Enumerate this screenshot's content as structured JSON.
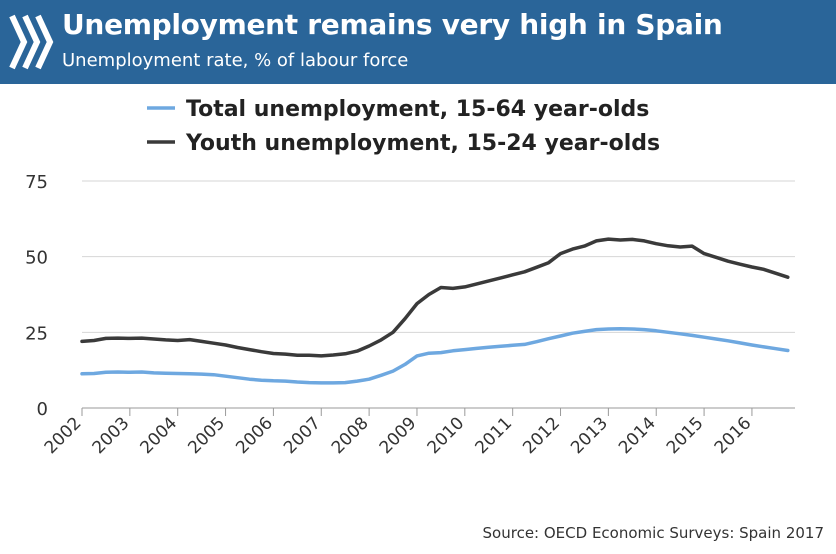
{
  "header": {
    "title": "Unemployment remains very high in Spain",
    "subtitle": "Unemployment rate, % of labour force",
    "logo_icon": "oecd-chevrons-icon",
    "background_color": "#2a6599"
  },
  "source": "Source: OECD Economic Surveys: Spain 2017",
  "chart_data": {
    "type": "line",
    "title": "Unemployment remains very high in Spain",
    "subtitle": "Unemployment rate, % of labour force",
    "xlabel": "",
    "ylabel": "",
    "ylim": [
      0,
      75
    ],
    "yticks": [
      0,
      25,
      50,
      75
    ],
    "xlim": [
      2002,
      2016.9
    ],
    "xticks": [
      "2002",
      "2003",
      "2004",
      "2005",
      "2006",
      "2007",
      "2008",
      "2009",
      "2010",
      "2011",
      "2012",
      "2013",
      "2014",
      "2015",
      "2016"
    ],
    "grid": true,
    "legend_position": "top",
    "series": [
      {
        "name": "Total unemployment, 15-64 year-olds",
        "color": "#6ea8e0",
        "x": [
          2002.0,
          2002.25,
          2002.5,
          2002.75,
          2003.0,
          2003.25,
          2003.5,
          2003.75,
          2004.0,
          2004.25,
          2004.5,
          2004.75,
          2005.0,
          2005.25,
          2005.5,
          2005.75,
          2006.0,
          2006.25,
          2006.5,
          2006.75,
          2007.0,
          2007.25,
          2007.5,
          2007.75,
          2008.0,
          2008.25,
          2008.5,
          2008.75,
          2009.0,
          2009.25,
          2009.5,
          2009.75,
          2010.0,
          2010.25,
          2010.5,
          2010.75,
          2011.0,
          2011.25,
          2011.5,
          2011.75,
          2012.0,
          2012.25,
          2012.5,
          2012.75,
          2013.0,
          2013.25,
          2013.5,
          2013.75,
          2014.0,
          2014.25,
          2014.5,
          2014.75,
          2015.0,
          2015.25,
          2015.5,
          2015.75,
          2016.0,
          2016.25,
          2016.5,
          2016.75
        ],
        "values": [
          11.3,
          11.4,
          11.8,
          11.9,
          11.8,
          11.9,
          11.6,
          11.5,
          11.4,
          11.3,
          11.2,
          11.0,
          10.5,
          10.0,
          9.5,
          9.2,
          9.0,
          8.9,
          8.6,
          8.4,
          8.3,
          8.3,
          8.4,
          8.9,
          9.5,
          10.8,
          12.2,
          14.4,
          17.2,
          18.1,
          18.3,
          18.9,
          19.3,
          19.7,
          20.1,
          20.4,
          20.7,
          21.0,
          21.9,
          22.9,
          23.8,
          24.7,
          25.3,
          25.9,
          26.1,
          26.2,
          26.1,
          25.9,
          25.5,
          25.0,
          24.5,
          24.0,
          23.4,
          22.8,
          22.2,
          21.5,
          20.8,
          20.2,
          19.6,
          19.0
        ]
      },
      {
        "name": "Youth unemployment, 15-24 year-olds",
        "color": "#3a3a3a",
        "x": [
          2002.0,
          2002.25,
          2002.5,
          2002.75,
          2003.0,
          2003.25,
          2003.5,
          2003.75,
          2004.0,
          2004.25,
          2004.5,
          2004.75,
          2005.0,
          2005.25,
          2005.5,
          2005.75,
          2006.0,
          2006.25,
          2006.5,
          2006.75,
          2007.0,
          2007.25,
          2007.5,
          2007.75,
          2008.0,
          2008.25,
          2008.5,
          2008.75,
          2009.0,
          2009.25,
          2009.5,
          2009.75,
          2010.0,
          2010.25,
          2010.5,
          2010.75,
          2011.0,
          2011.25,
          2011.5,
          2011.75,
          2012.0,
          2012.25,
          2012.5,
          2012.75,
          2013.0,
          2013.25,
          2013.5,
          2013.75,
          2014.0,
          2014.25,
          2014.5,
          2014.75,
          2015.0,
          2015.25,
          2015.5,
          2015.75,
          2016.0,
          2016.25,
          2016.5,
          2016.75
        ],
        "values": [
          22.0,
          22.3,
          23.0,
          23.1,
          23.0,
          23.1,
          22.8,
          22.5,
          22.3,
          22.6,
          22.0,
          21.4,
          20.8,
          20.0,
          19.3,
          18.6,
          18.0,
          17.8,
          17.4,
          17.4,
          17.2,
          17.5,
          17.9,
          18.8,
          20.5,
          22.5,
          25.0,
          29.5,
          34.5,
          37.5,
          39.8,
          39.5,
          40.0,
          41.0,
          42.0,
          43.0,
          44.0,
          45.0,
          46.5,
          48.0,
          51.0,
          52.5,
          53.5,
          55.2,
          55.8,
          55.5,
          55.7,
          55.2,
          54.3,
          53.6,
          53.2,
          53.5,
          51.0,
          49.8,
          48.5,
          47.5,
          46.6,
          45.8,
          44.5,
          43.2
        ]
      }
    ]
  }
}
